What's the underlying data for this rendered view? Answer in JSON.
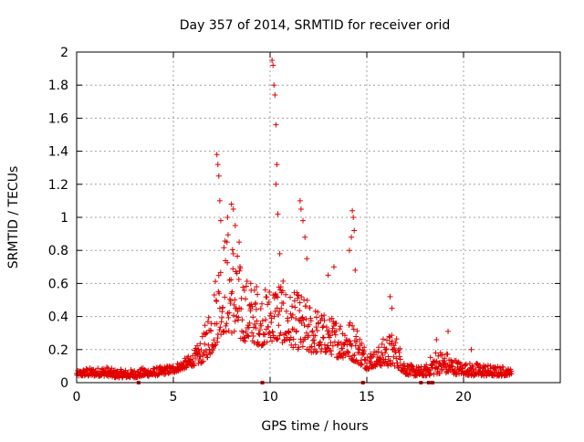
{
  "chart_data": {
    "type": "scatter",
    "title": "Day 357 of 2014, SRMTID for receiver orid",
    "xlabel": "GPS time / hours",
    "ylabel": "SRMTID / TECUs",
    "xlim": [
      0,
      25
    ],
    "ylim": [
      0,
      2
    ],
    "xticks": [
      0,
      5,
      10,
      15,
      20
    ],
    "yticks": [
      0,
      0.2,
      0.4,
      0.6,
      0.8,
      1,
      1.2,
      1.4,
      1.6,
      1.8,
      2
    ],
    "xtick_labels": [
      "0",
      "5",
      "10",
      "15",
      "20"
    ],
    "ytick_labels": [
      "0",
      "0.2",
      "0.4",
      "0.6",
      "0.8",
      "1",
      "1.2",
      "1.4",
      "1.6",
      "1.8",
      "2"
    ],
    "grid": true,
    "marker": "+",
    "color": "#e00000",
    "series": [
      {
        "name": "SRMTID",
        "envelope": [
          [
            0.0,
            0.04,
            0.07
          ],
          [
            0.5,
            0.04,
            0.09
          ],
          [
            1.0,
            0.04,
            0.09
          ],
          [
            1.5,
            0.04,
            0.1
          ],
          [
            2.0,
            0.03,
            0.08
          ],
          [
            2.5,
            0.03,
            0.08
          ],
          [
            3.0,
            0.03,
            0.08
          ],
          [
            3.5,
            0.04,
            0.09
          ],
          [
            4.0,
            0.04,
            0.09
          ],
          [
            4.5,
            0.05,
            0.1
          ],
          [
            5.0,
            0.06,
            0.11
          ],
          [
            5.5,
            0.08,
            0.14
          ],
          [
            6.0,
            0.1,
            0.18
          ],
          [
            6.5,
            0.12,
            0.28
          ],
          [
            7.0,
            0.18,
            0.55
          ],
          [
            7.5,
            0.3,
            0.9
          ],
          [
            8.0,
            0.3,
            0.95
          ],
          [
            8.5,
            0.25,
            0.7
          ],
          [
            9.0,
            0.25,
            0.6
          ],
          [
            9.5,
            0.22,
            0.55
          ],
          [
            10.0,
            0.25,
            0.6
          ],
          [
            10.5,
            0.25,
            0.65
          ],
          [
            11.0,
            0.22,
            0.55
          ],
          [
            11.5,
            0.2,
            0.55
          ],
          [
            12.0,
            0.18,
            0.5
          ],
          [
            12.5,
            0.18,
            0.45
          ],
          [
            13.0,
            0.18,
            0.4
          ],
          [
            13.5,
            0.15,
            0.4
          ],
          [
            14.0,
            0.15,
            0.4
          ],
          [
            14.5,
            0.12,
            0.35
          ],
          [
            15.0,
            0.08,
            0.2
          ],
          [
            15.5,
            0.1,
            0.2
          ],
          [
            16.0,
            0.1,
            0.3
          ],
          [
            16.5,
            0.1,
            0.3
          ],
          [
            17.0,
            0.05,
            0.12
          ],
          [
            17.5,
            0.04,
            0.1
          ],
          [
            18.0,
            0.04,
            0.1
          ],
          [
            18.5,
            0.05,
            0.2
          ],
          [
            19.0,
            0.06,
            0.2
          ],
          [
            19.5,
            0.05,
            0.15
          ],
          [
            20.0,
            0.05,
            0.12
          ],
          [
            20.5,
            0.04,
            0.12
          ],
          [
            21.0,
            0.04,
            0.12
          ],
          [
            21.5,
            0.04,
            0.1
          ],
          [
            22.0,
            0.04,
            0.1
          ],
          [
            22.5,
            0.05,
            0.08
          ]
        ],
        "peaks": [
          [
            7.25,
            1.38
          ],
          [
            7.3,
            1.32
          ],
          [
            7.35,
            1.25
          ],
          [
            7.4,
            1.1
          ],
          [
            7.45,
            0.98
          ],
          [
            7.8,
            1.0
          ],
          [
            8.0,
            1.08
          ],
          [
            8.1,
            1.05
          ],
          [
            8.2,
            0.95
          ],
          [
            8.4,
            0.85
          ],
          [
            9.0,
            0.6
          ],
          [
            9.3,
            0.58
          ],
          [
            10.1,
            1.95
          ],
          [
            10.15,
            1.92
          ],
          [
            10.2,
            1.8
          ],
          [
            10.25,
            1.74
          ],
          [
            10.3,
            1.56
          ],
          [
            10.35,
            1.32
          ],
          [
            10.3,
            1.2
          ],
          [
            10.4,
            1.02
          ],
          [
            10.5,
            0.78
          ],
          [
            11.55,
            1.1
          ],
          [
            11.6,
            1.05
          ],
          [
            11.7,
            0.98
          ],
          [
            11.8,
            0.88
          ],
          [
            11.9,
            0.75
          ],
          [
            13.0,
            0.65
          ],
          [
            13.3,
            0.7
          ],
          [
            14.1,
            0.8
          ],
          [
            14.2,
            0.88
          ],
          [
            14.25,
            1.04
          ],
          [
            14.3,
            1.0
          ],
          [
            14.35,
            0.92
          ],
          [
            14.4,
            0.68
          ],
          [
            16.2,
            0.52
          ],
          [
            16.3,
            0.45
          ],
          [
            18.6,
            0.26
          ],
          [
            19.2,
            0.31
          ],
          [
            20.4,
            0.2
          ]
        ],
        "zeros": [
          3.2,
          9.6,
          14.8,
          17.8,
          18.2,
          18.4
        ]
      }
    ]
  }
}
